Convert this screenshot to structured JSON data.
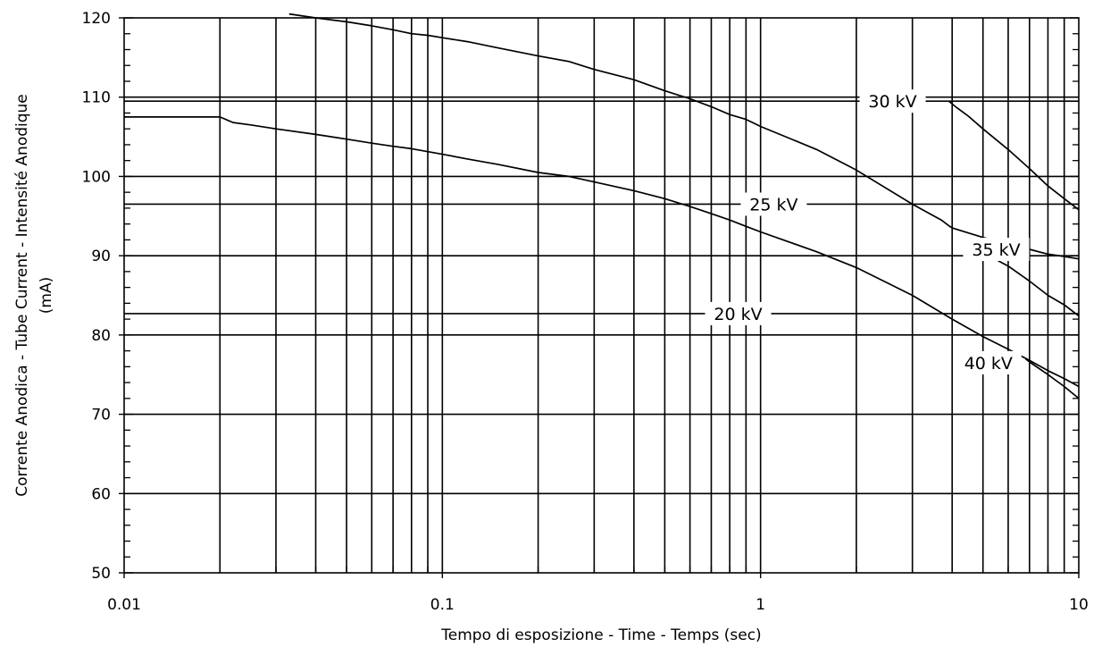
{
  "chart_data": {
    "type": "line",
    "title": "",
    "xlabel": "Tempo di esposizione - Time - Temps  (sec)",
    "ylabel_lines": [
      "Corrente Anodica - Tube Current - Intensité Anodique",
      "(mA)"
    ],
    "x_scale": "log",
    "xlim": [
      0.01,
      10
    ],
    "ylim": [
      50,
      120
    ],
    "x_ticks": [
      {
        "value": 0.01,
        "label": "0.01"
      },
      {
        "value": 0.1,
        "label": "0.1"
      },
      {
        "value": 1,
        "label": "1"
      },
      {
        "value": 10,
        "label": "10"
      }
    ],
    "y_ticks": [
      {
        "value": 50,
        "label": "50"
      },
      {
        "value": 60,
        "label": "60"
      },
      {
        "value": 70,
        "label": "70"
      },
      {
        "value": 80,
        "label": "80"
      },
      {
        "value": 90,
        "label": "90"
      },
      {
        "value": 100,
        "label": "100"
      },
      {
        "value": 110,
        "label": "110"
      },
      {
        "value": 120,
        "label": "120"
      }
    ],
    "x_gridlines": [
      0.02,
      0.03,
      0.04,
      0.05,
      0.06,
      0.07,
      0.08,
      0.09,
      0.1,
      0.2,
      0.3,
      0.4,
      0.5,
      0.6,
      0.7,
      0.8,
      0.9,
      1,
      2,
      3,
      4,
      5,
      6,
      7,
      8,
      9
    ],
    "y_gridlines": [
      60,
      70,
      80,
      90,
      100,
      110
    ],
    "series_reference_lines": [
      {
        "name": "20 kV",
        "y": 82.7,
        "label": "20 kV",
        "label_x": 0.85
      },
      {
        "name": "25 kV",
        "y": 96.5,
        "label": "25 kV",
        "label_x": 1.1
      },
      {
        "name": "30 kV",
        "y": 109.5,
        "label": "30 kV",
        "label_x": 2.6
      }
    ],
    "series": [
      {
        "name": "35 kV",
        "label": "35 kV",
        "label_point": [
          5.5,
          90.8
        ],
        "x": [
          0.033,
          0.04,
          0.05,
          0.06,
          0.07,
          0.08,
          0.09,
          0.1,
          0.12,
          0.15,
          0.2,
          0.25,
          0.3,
          0.4,
          0.5,
          0.6,
          0.7,
          0.8,
          0.9,
          1,
          1.5,
          2,
          3,
          3.7,
          3.9,
          4,
          5,
          6,
          7,
          8,
          9,
          10
        ],
        "y": [
          120.5,
          120,
          119.5,
          119,
          118.5,
          118,
          117.8,
          117.5,
          117,
          116.2,
          115.2,
          114.5,
          113.5,
          112.2,
          110.8,
          109.8,
          108.8,
          107.8,
          107.2,
          106.3,
          103.4,
          100.8,
          96.5,
          94.5,
          93.8,
          93.5,
          92.3,
          91.5,
          90.8,
          90.2,
          89.9,
          89.6
        ]
      },
      {
        "name": "40 kV",
        "label": "40 kV",
        "label_point": [
          5.2,
          76.5
        ],
        "x": [
          0.01,
          0.02,
          0.022,
          0.025,
          0.03,
          0.04,
          0.05,
          0.06,
          0.07,
          0.08,
          0.1,
          0.12,
          0.15,
          0.2,
          0.25,
          0.3,
          0.4,
          0.5,
          0.6,
          0.7,
          0.8,
          0.9,
          1,
          1.5,
          2,
          3,
          4,
          5,
          6,
          7,
          8,
          9,
          10
        ],
        "y": [
          107.5,
          107.5,
          106.8,
          106.5,
          106,
          105.3,
          104.7,
          104.2,
          103.8,
          103.5,
          102.8,
          102.2,
          101.5,
          100.5,
          100,
          99.3,
          98.2,
          97.2,
          96.2,
          95.3,
          94.5,
          93.7,
          93,
          90.5,
          88.5,
          85,
          82,
          79.8,
          78.2,
          76.8,
          75.5,
          74.5,
          73.5
        ]
      },
      {
        "name": "30 kV",
        "x": [
          3.9,
          4.1,
          4.5,
          5,
          6,
          7,
          8,
          9,
          10
        ],
        "y": [
          109.5,
          108.8,
          107.6,
          106,
          103.4,
          101,
          98.8,
          97.2,
          95.8
        ]
      },
      {
        "name": "25 kV",
        "x": [
          4.6,
          5,
          6,
          7,
          8,
          9,
          10
        ],
        "y": [
          91,
          90.4,
          88.7,
          86.8,
          85,
          83.8,
          82.4
        ]
      },
      {
        "name": "20 kV",
        "x": [
          6.8,
          7,
          8,
          9,
          10
        ],
        "y": [
          77,
          76.6,
          75,
          73.5,
          72
        ]
      }
    ]
  }
}
